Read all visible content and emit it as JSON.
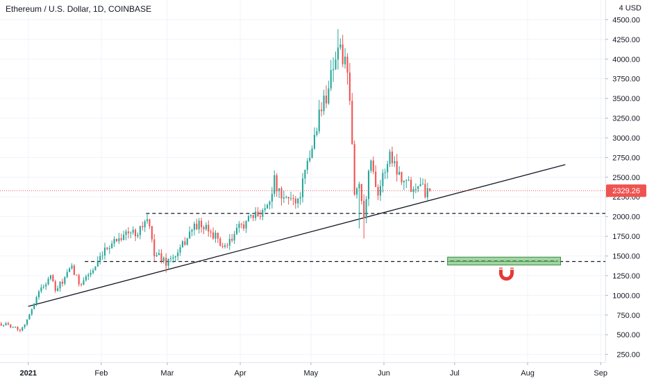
{
  "header": {
    "symbol_title": "Ethereum / U.S. Dollar, 1D, COINBASE",
    "currency": "USD",
    "currency_prefix": "4"
  },
  "price_tag": {
    "label": "2329.26",
    "value": 2329.26,
    "color": "#ef5350"
  },
  "colors": {
    "up": "#26a69a",
    "down": "#ef5350",
    "trendline": "#131722",
    "level": "#131722",
    "zone_fill": "#81c784",
    "zone_border": "#388e3c",
    "magnet": "#e53935"
  },
  "chart_data": {
    "type": "candlestick",
    "title": "Ethereum / U.S. Dollar, 1D, COINBASE",
    "ylabel": "USD",
    "ylim": [
      150,
      4750
    ],
    "y_ticks": [
      "4500.00",
      "4250.00",
      "4000.00",
      "3750.00",
      "3500.00",
      "3250.00",
      "3000.00",
      "2750.00",
      "2500.00",
      "2250.00",
      "2000.00",
      "1750.00",
      "1500.00",
      "1250.00",
      "1000.00",
      "750.00",
      "500.00",
      "250.00"
    ],
    "x_range": [
      "2020-12-20",
      "2021-09-03"
    ],
    "x_ticks": [
      {
        "label": "2021",
        "date": "2021-01-01"
      },
      {
        "label": "Feb",
        "date": "2021-02-01"
      },
      {
        "label": "Mar",
        "date": "2021-03-01"
      },
      {
        "label": "Apr",
        "date": "2021-04-01"
      },
      {
        "label": "May",
        "date": "2021-05-01"
      },
      {
        "label": "Jun",
        "date": "2021-06-01"
      },
      {
        "label": "Jul",
        "date": "2021-07-01"
      },
      {
        "label": "Aug",
        "date": "2021-08-01"
      },
      {
        "label": "Sep",
        "date": "2021-09-01"
      }
    ],
    "anchors": [
      [
        "2020-12-20",
        640
      ],
      [
        "2020-12-25",
        610
      ],
      [
        "2020-12-28",
        560
      ],
      [
        "2021-01-01",
        740
      ],
      [
        "2021-01-04",
        1000
      ],
      [
        "2021-01-10",
        1250
      ],
      [
        "2021-01-12",
        1050
      ],
      [
        "2021-01-19",
        1350
      ],
      [
        "2021-01-22",
        1150
      ],
      [
        "2021-01-29",
        1350
      ],
      [
        "2021-02-04",
        1650
      ],
      [
        "2021-02-10",
        1780
      ],
      [
        "2021-02-15",
        1800
      ],
      [
        "2021-02-20",
        1950
      ],
      [
        "2021-02-23",
        1550
      ],
      [
        "2021-02-28",
        1420
      ],
      [
        "2021-03-05",
        1520
      ],
      [
        "2021-03-10",
        1800
      ],
      [
        "2021-03-13",
        1900
      ],
      [
        "2021-03-20",
        1780
      ],
      [
        "2021-03-25",
        1580
      ],
      [
        "2021-04-01",
        1900
      ],
      [
        "2021-04-07",
        2000
      ],
      [
        "2021-04-12",
        2150
      ],
      [
        "2021-04-15",
        2450
      ],
      [
        "2021-04-18",
        2200
      ],
      [
        "2021-04-22",
        2250
      ],
      [
        "2021-04-25",
        2200
      ],
      [
        "2021-04-30",
        2750
      ],
      [
        "2021-05-04",
        3300
      ],
      [
        "2021-05-07",
        3550
      ],
      [
        "2021-05-10",
        3950
      ],
      [
        "2021-05-12",
        4150
      ],
      [
        "2021-05-15",
        3950
      ],
      [
        "2021-05-17",
        3450
      ],
      [
        "2021-05-19",
        2300
      ],
      [
        "2021-05-21",
        2400
      ],
      [
        "2021-05-23",
        2050
      ],
      [
        "2021-05-26",
        2750
      ],
      [
        "2021-05-29",
        2300
      ],
      [
        "2021-06-03",
        2800
      ],
      [
        "2021-06-07",
        2550
      ],
      [
        "2021-06-10",
        2450
      ],
      [
        "2021-06-13",
        2350
      ],
      [
        "2021-06-16",
        2500
      ],
      [
        "2021-06-18",
        2300
      ],
      [
        "2021-06-20",
        2329.26
      ]
    ],
    "highlights": [
      {
        "date": "2021-05-12",
        "high": 4380
      },
      {
        "date": "2021-05-23",
        "low": 1720
      },
      {
        "date": "2021-05-21",
        "low": 1850
      },
      {
        "date": "2021-02-28",
        "low": 1290
      },
      {
        "date": "2021-02-20",
        "high": 2040
      }
    ],
    "trendline": {
      "from": [
        "2021-01-01",
        860
      ],
      "to": [
        "2021-08-17",
        2660
      ]
    },
    "levels": [
      {
        "from_date": "2021-02-20",
        "value": 2040
      },
      {
        "from_date": "2021-01-25",
        "value": 1430
      }
    ],
    "zone": {
      "from": "2021-06-28",
      "to": "2021-08-15",
      "low": 1385,
      "high": 1485
    },
    "magnet_marker": {
      "date": "2021-07-23",
      "value": 1280
    }
  }
}
